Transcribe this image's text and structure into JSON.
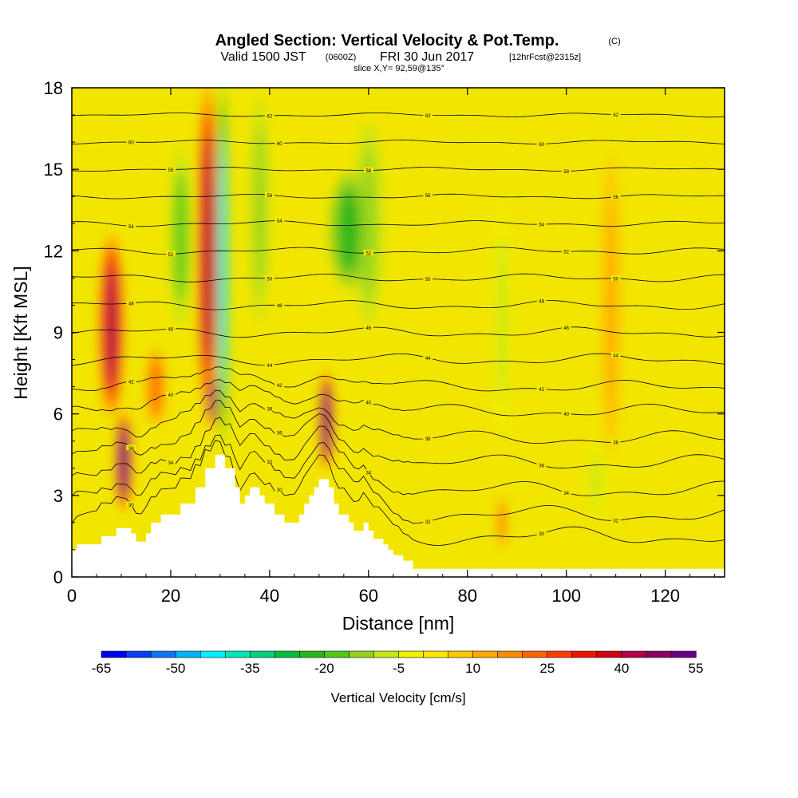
{
  "title": {
    "main": "Angled Section: Vertical Velocity & Pot.Temp.",
    "copyright": "(C)",
    "valid_prefix": "Valid 1500 JST",
    "valid_zulu": "(0600Z)",
    "valid_date": "FRI 30 Jun 2017",
    "fcst": "[12hrFcst@2315z]",
    "slice": "slice X,Y= 92,59@135°"
  },
  "colors": {
    "background_field": "#f2e600",
    "terrain": "#ffffff",
    "contour": "#000000"
  },
  "chart_data": {
    "type": "heatmap",
    "xlabel": "Distance [nm]",
    "ylabel": "Height [Kft MSL]",
    "xlim": [
      0,
      132
    ],
    "ylim": [
      0,
      18
    ],
    "xticks": [
      0,
      20,
      40,
      60,
      80,
      100,
      120
    ],
    "yticks": [
      0,
      3,
      6,
      9,
      12,
      15,
      18
    ],
    "colorbar": {
      "label": "Vertical Velocity [cm/s]",
      "levels": [
        -65,
        -60,
        -55,
        -50,
        -45,
        -40,
        -35,
        -30,
        -25,
        -20,
        -15,
        -10,
        -5,
        0,
        5,
        10,
        15,
        20,
        25,
        30,
        35,
        40,
        45,
        50,
        55
      ],
      "tick_labels": [
        "-65",
        "-50",
        "-35",
        "-20",
        "-5",
        "10",
        "25",
        "40",
        "55"
      ],
      "colors": [
        "#0000f0",
        "#0a3cf5",
        "#0a78f5",
        "#00b4ff",
        "#00f0ff",
        "#00e6b4",
        "#00d27d",
        "#00be3c",
        "#28b41e",
        "#50c814",
        "#96d21e",
        "#c8e614",
        "#f0f000",
        "#ffe600",
        "#ffc800",
        "#ffaa00",
        "#ff8c00",
        "#ff6400",
        "#ff3c00",
        "#f01400",
        "#d20014",
        "#b40046",
        "#8c0064",
        "#640082"
      ]
    },
    "theta_contours": [
      {
        "label": "30",
        "h": 1.5
      },
      {
        "label": "32",
        "h": 2.3
      },
      {
        "label": "34",
        "h": 3.2
      },
      {
        "label": "36",
        "h": 4.2
      },
      {
        "label": "38",
        "h": 5.1
      },
      {
        "label": "40",
        "h": 6.1
      },
      {
        "label": "42",
        "h": 7.0
      },
      {
        "label": "44",
        "h": 8.0
      },
      {
        "label": "46",
        "h": 9.0
      },
      {
        "label": "48",
        "h": 10.0
      },
      {
        "label": "50",
        "h": 11.0
      },
      {
        "label": "52",
        "h": 12.0
      },
      {
        "label": "54",
        "h": 13.0
      },
      {
        "label": "56",
        "h": 14.0
      },
      {
        "label": "58",
        "h": 15.0
      },
      {
        "label": "60",
        "h": 16.0
      },
      {
        "label": "62",
        "h": 17.0
      }
    ],
    "velocity_features": [
      {
        "x": 8,
        "h0": 6.0,
        "h1": 12.5,
        "w": 2.2,
        "v": 42
      },
      {
        "x": 10.5,
        "h0": 2.5,
        "h1": 6.0,
        "w": 1.4,
        "v": 55
      },
      {
        "x": 17,
        "h0": 5.5,
        "h1": 8.5,
        "w": 2.0,
        "v": 20
      },
      {
        "x": 22,
        "h0": 9.0,
        "h1": 16.0,
        "w": 2.4,
        "v": -18
      },
      {
        "x": 27.5,
        "h0": 6.0,
        "h1": 18.0,
        "w": 1.8,
        "v": 40
      },
      {
        "x": 28.5,
        "h0": 5.5,
        "h1": 7.5,
        "w": 0.8,
        "v": 55
      },
      {
        "x": 30.5,
        "h0": 5.0,
        "h1": 18.0,
        "w": 1.0,
        "v": -45
      },
      {
        "x": 38,
        "h0": 9.0,
        "h1": 18.0,
        "w": 2.0,
        "v": -15
      },
      {
        "x": 51.5,
        "h0": 4.0,
        "h1": 7.5,
        "w": 1.2,
        "v": 55
      },
      {
        "x": 56,
        "h0": 10.5,
        "h1": 15.0,
        "w": 4.0,
        "v": -22
      },
      {
        "x": 60,
        "h0": 9.0,
        "h1": 17.0,
        "w": 3.0,
        "v": -12
      },
      {
        "x": 87,
        "h0": 5.0,
        "h1": 14.0,
        "w": 1.8,
        "v": -10
      },
      {
        "x": 87,
        "h0": 1.0,
        "h1": 3.0,
        "w": 0.9,
        "v": 20
      },
      {
        "x": 109,
        "h0": 4.0,
        "h1": 16.0,
        "w": 2.0,
        "v": 12
      },
      {
        "x": 106,
        "h0": 2.0,
        "h1": 5.0,
        "w": 1.8,
        "v": -10
      }
    ],
    "terrain_kft": [
      [
        0,
        1.0
      ],
      [
        1,
        1.0
      ],
      [
        1,
        1.2
      ],
      [
        6,
        1.2
      ],
      [
        6,
        1.5
      ],
      [
        9,
        1.5
      ],
      [
        9,
        1.8
      ],
      [
        12,
        1.8
      ],
      [
        12,
        1.6
      ],
      [
        13,
        1.6
      ],
      [
        13,
        1.3
      ],
      [
        15,
        1.3
      ],
      [
        15,
        1.6
      ],
      [
        16,
        1.6
      ],
      [
        16,
        2.0
      ],
      [
        18,
        2.0
      ],
      [
        18,
        2.3
      ],
      [
        22,
        2.3
      ],
      [
        22,
        2.7
      ],
      [
        25,
        2.7
      ],
      [
        25,
        3.3
      ],
      [
        27,
        3.3
      ],
      [
        27,
        4.0
      ],
      [
        29,
        4.0
      ],
      [
        29,
        4.5
      ],
      [
        31,
        4.5
      ],
      [
        31,
        4.0
      ],
      [
        33,
        4.0
      ],
      [
        33,
        3.3
      ],
      [
        34,
        3.3
      ],
      [
        34,
        2.7
      ],
      [
        35,
        2.7
      ],
      [
        35,
        3.0
      ],
      [
        36,
        3.0
      ],
      [
        36,
        3.3
      ],
      [
        38,
        3.3
      ],
      [
        38,
        3.0
      ],
      [
        39,
        3.0
      ],
      [
        39,
        2.7
      ],
      [
        41,
        2.7
      ],
      [
        41,
        2.3
      ],
      [
        43,
        2.3
      ],
      [
        43,
        2.0
      ],
      [
        46,
        2.0
      ],
      [
        46,
        2.3
      ],
      [
        47,
        2.3
      ],
      [
        47,
        2.7
      ],
      [
        48,
        2.7
      ],
      [
        48,
        3.0
      ],
      [
        49,
        3.0
      ],
      [
        49,
        3.3
      ],
      [
        50,
        3.3
      ],
      [
        50,
        3.6
      ],
      [
        52,
        3.6
      ],
      [
        52,
        3.3
      ],
      [
        53,
        3.3
      ],
      [
        53,
        2.7
      ],
      [
        54,
        2.7
      ],
      [
        54,
        2.3
      ],
      [
        56,
        2.3
      ],
      [
        56,
        2.0
      ],
      [
        57,
        2.0
      ],
      [
        57,
        1.7
      ],
      [
        59,
        1.7
      ],
      [
        59,
        2.0
      ],
      [
        60,
        2.0
      ],
      [
        60,
        1.7
      ],
      [
        61,
        1.7
      ],
      [
        61,
        1.4
      ],
      [
        63,
        1.4
      ],
      [
        63,
        1.2
      ],
      [
        64,
        1.2
      ],
      [
        64,
        1.0
      ],
      [
        65,
        1.0
      ],
      [
        65,
        0.8
      ],
      [
        67,
        0.8
      ],
      [
        67,
        0.6
      ],
      [
        69,
        0.6
      ],
      [
        69,
        0.3
      ],
      [
        132,
        0.3
      ]
    ]
  }
}
